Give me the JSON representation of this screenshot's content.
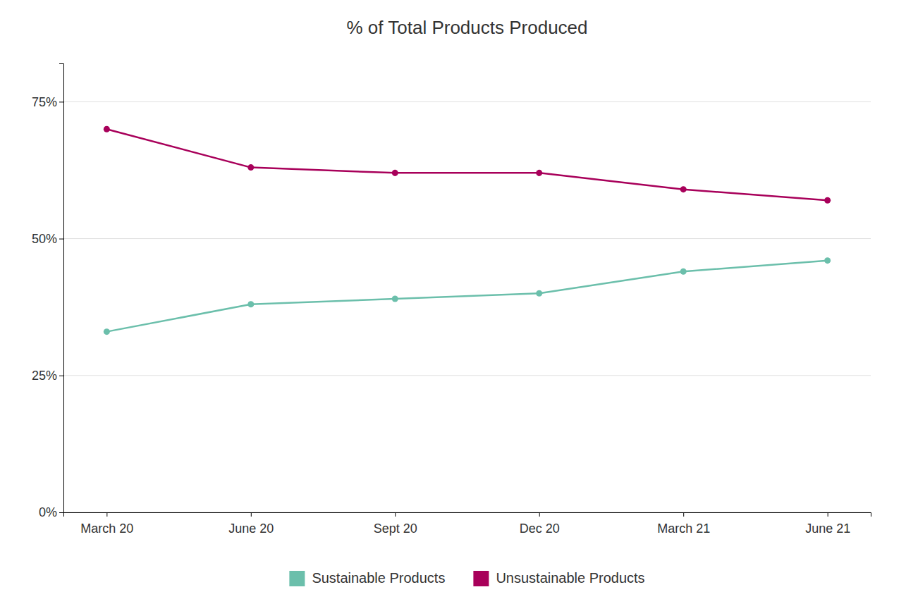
{
  "chart_data": {
    "type": "line",
    "title": "% of Total Products Produced",
    "categories": [
      "March 20",
      "June 20",
      "Sept 20",
      "Dec 20",
      "March 21",
      "June 21"
    ],
    "series": [
      {
        "name": "Sustainable Products",
        "color": "#6BBFAB",
        "values": [
          33,
          38,
          39,
          40,
          44,
          46
        ]
      },
      {
        "name": "Unsustainable Products",
        "color": "#A8005A",
        "values": [
          70,
          63,
          62,
          62,
          59,
          57
        ]
      }
    ],
    "ylim": [
      0,
      82
    ],
    "yticks": [
      {
        "value": 0,
        "label": "0%"
      },
      {
        "value": 25,
        "label": "25%"
      },
      {
        "value": 50,
        "label": "50%"
      },
      {
        "value": 75,
        "label": "75%"
      }
    ],
    "grid": true,
    "legend": "bottom",
    "marker": "circle"
  }
}
